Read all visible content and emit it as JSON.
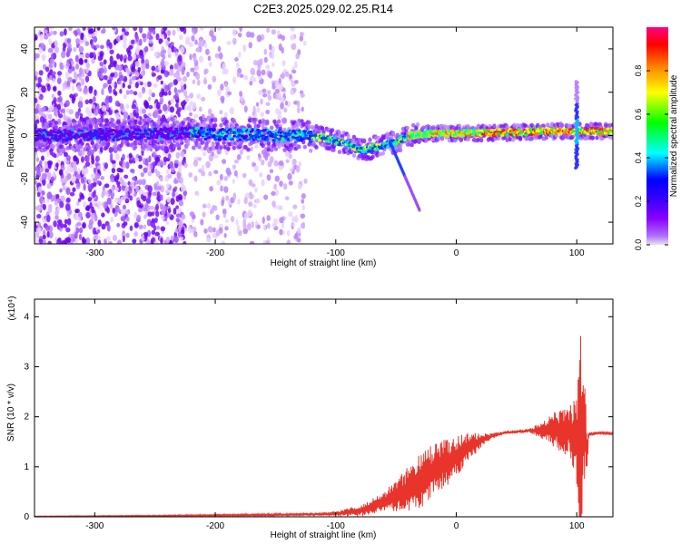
{
  "title": "C2E3.2025.029.02.25.R14",
  "colors": {
    "snr_line": "#e8342b",
    "axis": "#000000",
    "spectrogram_cmap": [
      "#ffffff",
      "#b06bff",
      "#6600ff",
      "#0000ff",
      "#00c8ff",
      "#00ff80",
      "#ffff00",
      "#ff8000",
      "#ff0000"
    ],
    "colorbar_cmap": [
      "#e5e5e5",
      "#8a00ff",
      "#0000ff",
      "#00ffff",
      "#00ff00",
      "#ffff00",
      "#ff0000",
      "#ff0080"
    ]
  },
  "chart_data": [
    {
      "type": "heatmap",
      "name": "spectrogram",
      "xlabel": "Height of straight line (km)",
      "ylabel": "Frequency (Hz)",
      "xlim": [
        -350,
        130
      ],
      "ylim": [
        -50,
        50
      ],
      "xticks": [
        "-300",
        "-200",
        "-100",
        "0",
        "100"
      ],
      "yticks": [
        "-40",
        "-20",
        "0",
        "20",
        "40"
      ],
      "grid": false,
      "colorbar": {
        "label": "Normalized spectral amplitude",
        "range": [
          0,
          1
        ],
        "ticks": [
          "0.0",
          "0.2",
          "0.4",
          "0.6",
          "0.8"
        ]
      },
      "description_points": {
        "ridge": [
          [
            -350,
            0
          ],
          [
            -220,
            1
          ],
          [
            -130,
            0
          ],
          [
            -110,
            -1
          ],
          [
            -90,
            -4
          ],
          [
            -80,
            -7
          ],
          [
            -65,
            -5
          ],
          [
            -50,
            -3
          ],
          [
            -40,
            0
          ],
          [
            -20,
            1
          ],
          [
            0,
            1
          ],
          [
            50,
            1.5
          ],
          [
            80,
            2
          ],
          [
            100,
            2
          ],
          [
            130,
            2
          ]
        ],
        "noise_extent_x": [
          -350,
          -125
        ],
        "dense_noise_extent_x": [
          -350,
          -225
        ],
        "spur_at_x": 100,
        "spur_frequency_range": [
          -15,
          25
        ],
        "tail_from_x": -55,
        "tail_to": [
          -30,
          -35
        ]
      }
    },
    {
      "type": "line",
      "name": "snr",
      "xlabel": "Height of straight line (km)",
      "ylabel": "SNR (10 * v/v)",
      "multiplier_label": "(x10⁴)",
      "xlim": [
        -350,
        130
      ],
      "ylim": [
        0,
        4.35
      ],
      "xticks": [
        "-300",
        "-200",
        "-100",
        "0",
        "100"
      ],
      "yticks": [
        "0",
        "1",
        "2",
        "3",
        "4"
      ],
      "grid": false,
      "envelope": {
        "x": [
          -350,
          -250,
          -200,
          -150,
          -120,
          -100,
          -80,
          -60,
          -40,
          -30,
          -20,
          -10,
          0,
          10,
          20,
          30,
          40,
          60,
          70,
          80,
          90,
          95,
          100,
          103,
          105,
          107,
          108,
          110,
          120,
          130
        ],
        "mean": [
          0.01,
          0.02,
          0.03,
          0.04,
          0.05,
          0.06,
          0.12,
          0.3,
          0.55,
          0.75,
          0.9,
          1.05,
          1.2,
          1.38,
          1.52,
          1.62,
          1.68,
          1.72,
          1.73,
          1.74,
          1.72,
          1.7,
          1.6,
          1.4,
          1.5,
          1.8,
          1.2,
          1.65,
          1.68,
          1.66
        ],
        "amp": [
          0.005,
          0.01,
          0.015,
          0.02,
          0.03,
          0.05,
          0.12,
          0.2,
          0.45,
          0.6,
          0.55,
          0.5,
          0.42,
          0.3,
          0.15,
          0.06,
          0.03,
          0.04,
          0.15,
          0.35,
          0.5,
          0.55,
          0.9,
          2.6,
          1.3,
          1.2,
          0.5,
          0.05,
          0.02,
          0.02
        ]
      }
    }
  ]
}
